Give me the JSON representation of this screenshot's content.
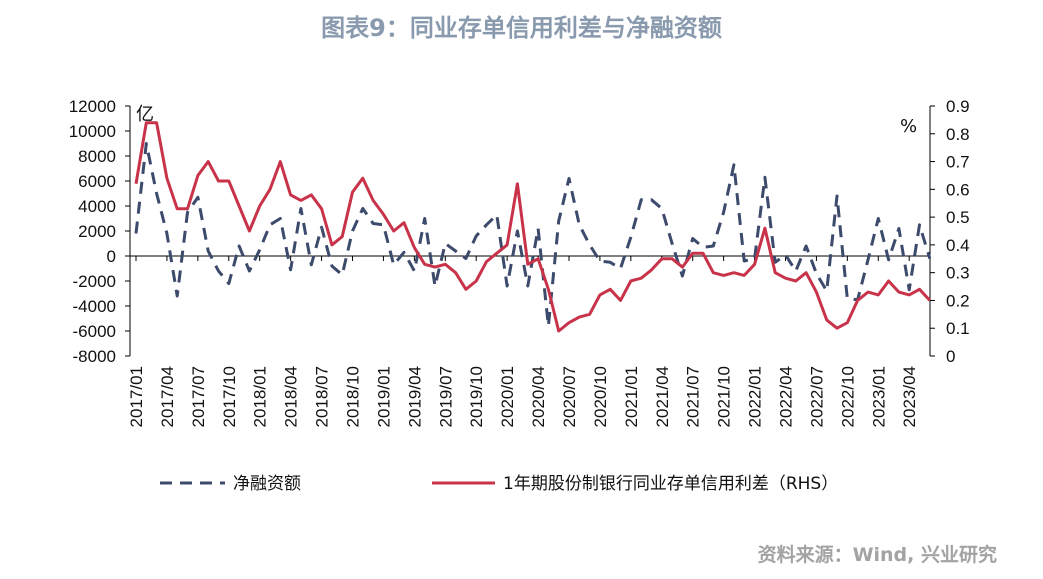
{
  "title": "图表9：同业存单信用利差与净融资额",
  "source": "资料来源：Wind, 兴业研究",
  "colors": {
    "net_financing": "#3c4a6b",
    "spread": "#c8334a",
    "axis": "#000000"
  },
  "chart_data": {
    "type": "line",
    "left_axis": {
      "unit": "亿",
      "ylim": [
        -8000,
        12000
      ],
      "ticks": [
        -8000,
        -6000,
        -4000,
        -2000,
        0,
        2000,
        4000,
        6000,
        8000,
        10000,
        12000
      ]
    },
    "right_axis": {
      "unit": "%",
      "ylim": [
        0,
        0.9
      ],
      "ticks": [
        0,
        0.1,
        0.2,
        0.3,
        0.4,
        0.5,
        0.6,
        0.7,
        0.8,
        0.9
      ]
    },
    "x_tick_labels": [
      "2017/01",
      "2017/04",
      "2017/07",
      "2017/10",
      "2018/01",
      "2018/04",
      "2018/07",
      "2018/10",
      "2019/01",
      "2019/04",
      "2019/07",
      "2019/10",
      "2020/01",
      "2020/04",
      "2020/07",
      "2020/10",
      "2021/01",
      "2021/04",
      "2021/07",
      "2021/10",
      "2022/01",
      "2022/04",
      "2022/07",
      "2022/10",
      "2023/01",
      "2023/04"
    ],
    "x": [
      "2017/01",
      "2017/02",
      "2017/03",
      "2017/04",
      "2017/05",
      "2017/06",
      "2017/07",
      "2017/08",
      "2017/09",
      "2017/10",
      "2017/11",
      "2017/12",
      "2018/01",
      "2018/02",
      "2018/03",
      "2018/04",
      "2018/05",
      "2018/06",
      "2018/07",
      "2018/08",
      "2018/09",
      "2018/10",
      "2018/11",
      "2018/12",
      "2019/01",
      "2019/02",
      "2019/03",
      "2019/04",
      "2019/05",
      "2019/06",
      "2019/07",
      "2019/08",
      "2019/09",
      "2019/10",
      "2019/11",
      "2019/12",
      "2020/01",
      "2020/02",
      "2020/03",
      "2020/04",
      "2020/05",
      "2020/06",
      "2020/07",
      "2020/08",
      "2020/09",
      "2020/10",
      "2020/11",
      "2020/12",
      "2021/01",
      "2021/02",
      "2021/03",
      "2021/04",
      "2021/05",
      "2021/06",
      "2021/07",
      "2021/08",
      "2021/09",
      "2021/10",
      "2021/11",
      "2021/12",
      "2022/01",
      "2022/02",
      "2022/03",
      "2022/04",
      "2022/05",
      "2022/06",
      "2022/07",
      "2022/08",
      "2022/09",
      "2022/10",
      "2022/11",
      "2022/12",
      "2023/01",
      "2023/02",
      "2023/03",
      "2023/04",
      "2023/05",
      "2023/06"
    ],
    "series": [
      {
        "name": "净融资额",
        "axis": "left",
        "style": "dashed",
        "values": [
          1800,
          9000,
          5000,
          1800,
          -3200,
          3500,
          4700,
          400,
          -1200,
          -2200,
          800,
          -1200,
          500,
          2500,
          3000,
          -1100,
          3800,
          -700,
          2300,
          -800,
          -1500,
          2000,
          3800,
          2600,
          2500,
          -700,
          300,
          -1200,
          3000,
          -2400,
          1000,
          400,
          -200,
          1600,
          2500,
          3300,
          -2400,
          2000,
          -2400,
          2200,
          -5600,
          2800,
          6200,
          2500,
          900,
          -400,
          -500,
          -1000,
          1500,
          4500,
          4500,
          3800,
          1000,
          -1600,
          1400,
          700,
          800,
          3500,
          7300,
          -400,
          -200,
          6300,
          -500,
          100,
          -1200,
          800,
          -1400,
          -2800,
          4800,
          -3400,
          -3500,
          -300,
          3000,
          -300,
          2200,
          -2700,
          2500,
          -200
        ]
      },
      {
        "name": "1年期股份制银行同业存单信用利差（RHS）",
        "axis": "right",
        "style": "solid",
        "values": [
          0.62,
          0.84,
          0.84,
          0.64,
          0.53,
          0.53,
          0.65,
          0.7,
          0.63,
          0.63,
          0.54,
          0.45,
          0.54,
          0.6,
          0.7,
          0.58,
          0.56,
          0.58,
          0.53,
          0.4,
          0.43,
          0.59,
          0.64,
          0.56,
          0.51,
          0.45,
          0.48,
          0.39,
          0.33,
          0.32,
          0.33,
          0.3,
          0.24,
          0.27,
          0.34,
          0.37,
          0.4,
          0.62,
          0.33,
          0.35,
          0.24,
          0.09,
          0.12,
          0.14,
          0.15,
          0.22,
          0.24,
          0.2,
          0.27,
          0.28,
          0.31,
          0.35,
          0.35,
          0.32,
          0.37,
          0.37,
          0.3,
          0.29,
          0.3,
          0.29,
          0.33,
          0.46,
          0.3,
          0.28,
          0.27,
          0.3,
          0.23,
          0.13,
          0.1,
          0.12,
          0.2,
          0.23,
          0.22,
          0.27,
          0.23,
          0.22,
          0.24,
          0.2
        ]
      }
    ],
    "legend": {
      "placement": "bottom"
    },
    "grid": false
  }
}
